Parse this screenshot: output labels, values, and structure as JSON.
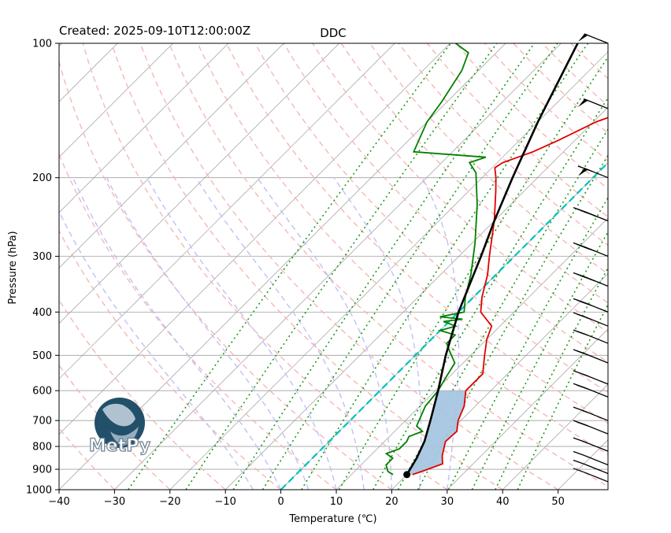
{
  "header": {
    "created": "Created: 2025-09-10T12:00:00Z",
    "station": "DDC"
  },
  "logo": {
    "text": "MetPy"
  },
  "chart_data": {
    "type": "skew-t",
    "title": "DDC",
    "xlabel": "Temperature (℃)",
    "ylabel": "Pressure (hPa)",
    "xlim": [
      -40,
      59
    ],
    "ylim": [
      1000,
      100
    ],
    "y_scale": "log",
    "x_ticks": [
      -40,
      -30,
      -20,
      -10,
      0,
      10,
      20,
      30,
      40,
      50
    ],
    "y_ticks": [
      100,
      200,
      300,
      400,
      500,
      600,
      700,
      800,
      900,
      1000
    ],
    "grid": true,
    "colors": {
      "temperature": "#e00000",
      "dewpoint": "#008000",
      "parcel": "#000000",
      "cape": "#a6c6e0",
      "isotherm_0": "#00c0c0",
      "dry_adiabat": "#f4b8b8",
      "moist_adiabat": "#c0c0f8",
      "mixing_ratio": "#1a9a1a"
    },
    "temperature": [
      {
        "p": 925,
        "t": 21
      },
      {
        "p": 905,
        "t": 22.5
      },
      {
        "p": 875,
        "t": 24.5
      },
      {
        "p": 840,
        "t": 23
      },
      {
        "p": 780,
        "t": 21
      },
      {
        "p": 740,
        "t": 21.2
      },
      {
        "p": 700,
        "t": 19.5
      },
      {
        "p": 650,
        "t": 18
      },
      {
        "p": 600,
        "t": 15.5
      },
      {
        "p": 550,
        "t": 15.5
      },
      {
        "p": 500,
        "t": 12.5
      },
      {
        "p": 460,
        "t": 10
      },
      {
        "p": 430,
        "t": 8.5
      },
      {
        "p": 400,
        "t": 4
      },
      {
        "p": 370,
        "t": 1.5
      },
      {
        "p": 330,
        "t": -1.5
      },
      {
        "p": 300,
        "t": -4.5
      },
      {
        "p": 250,
        "t": -10
      },
      {
        "p": 215,
        "t": -15
      },
      {
        "p": 200,
        "t": -17.5
      },
      {
        "p": 190,
        "t": -19.5
      },
      {
        "p": 185,
        "t": -19
      },
      {
        "p": 175,
        "t": -15.5
      },
      {
        "p": 165,
        "t": -13
      },
      {
        "p": 150,
        "t": -9.5
      },
      {
        "p": 142,
        "t": -6
      },
      {
        "p": 125,
        "t": -4
      },
      {
        "p": 110,
        "t": 0
      },
      {
        "p": 100,
        "t": -1
      }
    ],
    "dewpoint": [
      {
        "p": 925,
        "t": 17.5
      },
      {
        "p": 910,
        "t": 16
      },
      {
        "p": 880,
        "t": 14.5
      },
      {
        "p": 850,
        "t": 14.5
      },
      {
        "p": 830,
        "t": 12.5
      },
      {
        "p": 810,
        "t": 14
      },
      {
        "p": 780,
        "t": 14
      },
      {
        "p": 760,
        "t": 13.5
      },
      {
        "p": 740,
        "t": 15
      },
      {
        "p": 720,
        "t": 13
      },
      {
        "p": 650,
        "t": 11
      },
      {
        "p": 600,
        "t": 10.5
      },
      {
        "p": 560,
        "t": 9.5
      },
      {
        "p": 520,
        "t": 8.5
      },
      {
        "p": 490,
        "t": 5.5
      },
      {
        "p": 470,
        "t": 3.5
      },
      {
        "p": 450,
        "t": 3.5
      },
      {
        "p": 440,
        "t": 0
      },
      {
        "p": 430,
        "t": 2
      },
      {
        "p": 420,
        "t": -1
      },
      {
        "p": 415,
        "t": 2
      },
      {
        "p": 410,
        "t": -2.5
      },
      {
        "p": 400,
        "t": 1
      },
      {
        "p": 370,
        "t": -1.5
      },
      {
        "p": 330,
        "t": -4.5
      },
      {
        "p": 280,
        "t": -9.5
      },
      {
        "p": 230,
        "t": -16
      },
      {
        "p": 195,
        "t": -22
      },
      {
        "p": 185,
        "t": -25
      },
      {
        "p": 180,
        "t": -23
      },
      {
        "p": 175,
        "t": -37
      },
      {
        "p": 150,
        "t": -40
      },
      {
        "p": 135,
        "t": -41
      },
      {
        "p": 115,
        "t": -43
      },
      {
        "p": 105,
        "t": -45
      },
      {
        "p": 100,
        "t": -49
      }
    ],
    "parcel": [
      {
        "p": 925,
        "t": 20
      },
      {
        "p": 850,
        "t": 18.8
      },
      {
        "p": 780,
        "t": 17.2
      },
      {
        "p": 700,
        "t": 14.5
      },
      {
        "p": 600,
        "t": 10.5
      },
      {
        "p": 500,
        "t": 5.5
      },
      {
        "p": 400,
        "t": 0
      },
      {
        "p": 300,
        "t": -6
      },
      {
        "p": 250,
        "t": -10
      },
      {
        "p": 200,
        "t": -14.5
      },
      {
        "p": 150,
        "t": -20
      },
      {
        "p": 100,
        "t": -27
      }
    ],
    "surface_point": {
      "p": 925,
      "t": 20
    },
    "wind_barbs": [
      {
        "p": 100,
        "speed_kt": 50
      },
      {
        "p": 140,
        "speed_kt": 55
      },
      {
        "p": 200,
        "speed_kt": 65
      },
      {
        "p": 250,
        "speed_kt": 45
      },
      {
        "p": 300,
        "speed_kt": 40
      },
      {
        "p": 350,
        "speed_kt": 35
      },
      {
        "p": 400,
        "speed_kt": 30
      },
      {
        "p": 430,
        "speed_kt": 25
      },
      {
        "p": 470,
        "speed_kt": 20
      },
      {
        "p": 520,
        "speed_kt": 20
      },
      {
        "p": 580,
        "speed_kt": 15
      },
      {
        "p": 620,
        "speed_kt": 20
      },
      {
        "p": 700,
        "speed_kt": 15
      },
      {
        "p": 750,
        "speed_kt": 20
      },
      {
        "p": 820,
        "speed_kt": 15
      },
      {
        "p": 880,
        "speed_kt": 10
      },
      {
        "p": 920,
        "speed_kt": 10
      },
      {
        "p": 960,
        "speed_kt": 10
      }
    ]
  }
}
